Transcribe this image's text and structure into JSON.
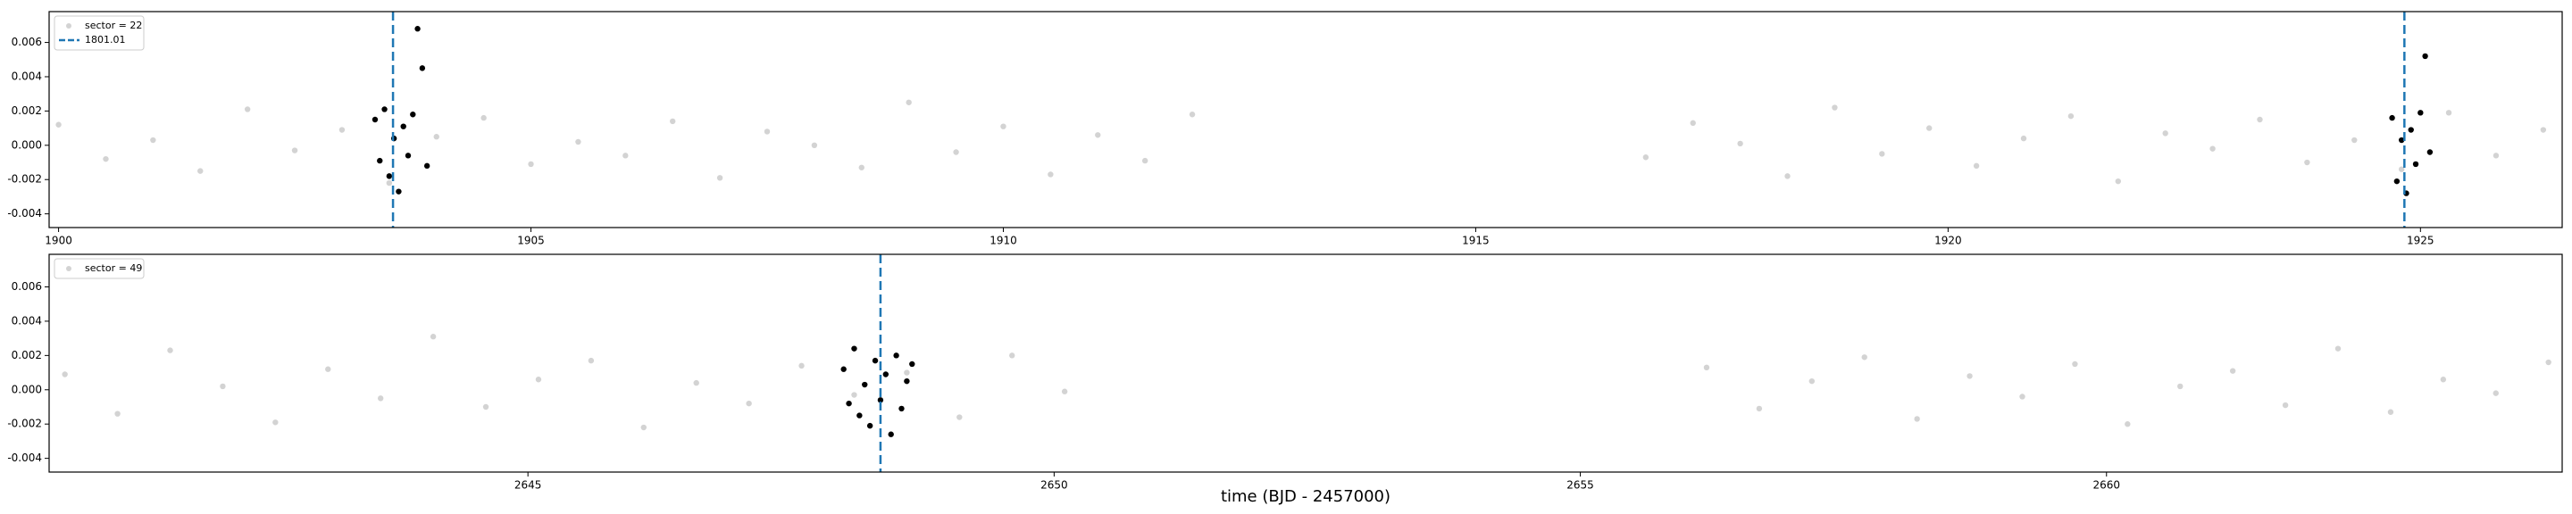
{
  "chart_data": [
    {
      "type": "scatter",
      "legend": "upper left",
      "xlim": [
        1899.9,
        1926.5
      ],
      "ylim": [
        -0.0048,
        0.0078
      ],
      "xticks": [
        1900,
        1905,
        1910,
        1915,
        1920,
        1925
      ],
      "yticks": [
        -0.004,
        -0.002,
        {
          "value": 0,
          "label": "0.000"
        },
        0.002,
        0.004,
        0.006
      ],
      "series": [
        {
          "name": "sector = 22",
          "color": "#d3d3d3",
          "x": [
            1900.0,
            1900.5,
            1901.0,
            1901.5,
            1902.0,
            1902.5,
            1903.0,
            1903.5,
            1904.0,
            1904.5,
            1905.0,
            1905.5,
            1906.0,
            1906.5,
            1907.0,
            1907.5,
            1908.0,
            1908.5,
            1909.0,
            1909.5,
            1910.0,
            1910.5,
            1911.0,
            1911.5,
            1912.0,
            1916.8,
            1917.3,
            1917.8,
            1918.3,
            1918.8,
            1919.3,
            1919.8,
            1920.3,
            1920.8,
            1921.3,
            1921.8,
            1922.3,
            1922.8,
            1923.3,
            1923.8,
            1924.3,
            1924.8,
            1925.3,
            1925.8,
            1926.3
          ],
          "y": [
            0.0012,
            -0.0008,
            0.0003,
            -0.0015,
            0.0021,
            -0.0003,
            0.0009,
            -0.0022,
            0.0005,
            0.0016,
            -0.0011,
            0.0002,
            -0.0006,
            0.0014,
            -0.0019,
            0.0008,
            0.0,
            -0.0013,
            0.0025,
            -0.0004,
            0.0011,
            -0.0017,
            0.0006,
            -0.0009,
            0.0018,
            -0.0007,
            0.0013,
            0.0001,
            -0.0018,
            0.0022,
            -0.0005,
            0.001,
            -0.0012,
            0.0004,
            0.0017,
            -0.0021,
            0.0007,
            -0.0002,
            0.0015,
            -0.001,
            0.0003,
            -0.0014,
            0.0019,
            -0.0006,
            0.0009
          ]
        },
        {
          "color": "#000000",
          "x": [
            1903.35,
            1903.4,
            1903.45,
            1903.5,
            1903.55,
            1903.6,
            1903.65,
            1903.7,
            1903.75,
            1903.8,
            1903.85,
            1903.9,
            1924.7,
            1924.75,
            1924.8,
            1924.85,
            1924.9,
            1924.95,
            1925.0,
            1925.05,
            1925.1
          ],
          "y": [
            0.0015,
            -0.0009,
            0.0021,
            -0.0018,
            0.0004,
            -0.0027,
            0.0011,
            -0.0006,
            0.0018,
            0.0068,
            0.0045,
            -0.0012,
            0.0016,
            -0.0021,
            0.0003,
            -0.0028,
            0.0009,
            -0.0011,
            0.0019,
            0.0052,
            -0.0004
          ]
        }
      ],
      "vlines": [
        {
          "name": "1801.01",
          "x": 1903.54,
          "color": "#1f77b4"
        },
        {
          "x": 1924.83,
          "color": "#1f77b4"
        }
      ]
    },
    {
      "type": "scatter",
      "legend": "upper left",
      "xlim": [
        2640.45,
        2664.33
      ],
      "ylim": [
        -0.0048,
        0.0079
      ],
      "xticks": [
        2645,
        2650,
        2655,
        2660
      ],
      "yticks": [
        -0.004,
        -0.002,
        {
          "value": 0,
          "label": "0.000"
        },
        0.002,
        0.004,
        0.006
      ],
      "xlabel": "time (BJD - 2457000)",
      "series": [
        {
          "name": "sector = 49",
          "color": "#d3d3d3",
          "x": [
            2640.6,
            2641.1,
            2641.6,
            2642.1,
            2642.6,
            2643.1,
            2643.6,
            2644.1,
            2644.6,
            2645.1,
            2645.6,
            2646.1,
            2646.6,
            2647.1,
            2647.6,
            2648.1,
            2648.6,
            2649.1,
            2649.6,
            2650.1,
            2656.2,
            2656.7,
            2657.2,
            2657.7,
            2658.2,
            2658.7,
            2659.2,
            2659.7,
            2660.2,
            2660.7,
            2661.2,
            2661.7,
            2662.2,
            2662.7,
            2663.2,
            2663.7,
            2664.2
          ],
          "y": [
            0.0009,
            -0.0014,
            0.0023,
            0.0002,
            -0.0019,
            0.0012,
            -0.0005,
            0.0031,
            -0.001,
            0.0006,
            0.0017,
            -0.0022,
            0.0004,
            -0.0008,
            0.0014,
            -0.0003,
            0.001,
            -0.0016,
            0.002,
            -0.0001,
            0.0013,
            -0.0011,
            0.0005,
            0.0019,
            -0.0017,
            0.0008,
            -0.0004,
            0.0015,
            -0.002,
            0.0002,
            0.0011,
            -0.0009,
            0.0024,
            -0.0013,
            0.0006,
            -0.0002,
            0.0016
          ]
        },
        {
          "color": "#000000",
          "x": [
            2648.0,
            2648.05,
            2648.1,
            2648.15,
            2648.2,
            2648.25,
            2648.3,
            2648.35,
            2648.4,
            2648.45,
            2648.5,
            2648.55,
            2648.6,
            2648.65
          ],
          "y": [
            0.0012,
            -0.0008,
            0.0024,
            -0.0015,
            0.0003,
            -0.0021,
            0.0017,
            -0.0006,
            0.0009,
            -0.0026,
            0.002,
            -0.0011,
            0.0005,
            0.0015
          ]
        }
      ],
      "vlines": [
        {
          "x": 2648.35,
          "color": "#1f77b4"
        }
      ]
    }
  ]
}
